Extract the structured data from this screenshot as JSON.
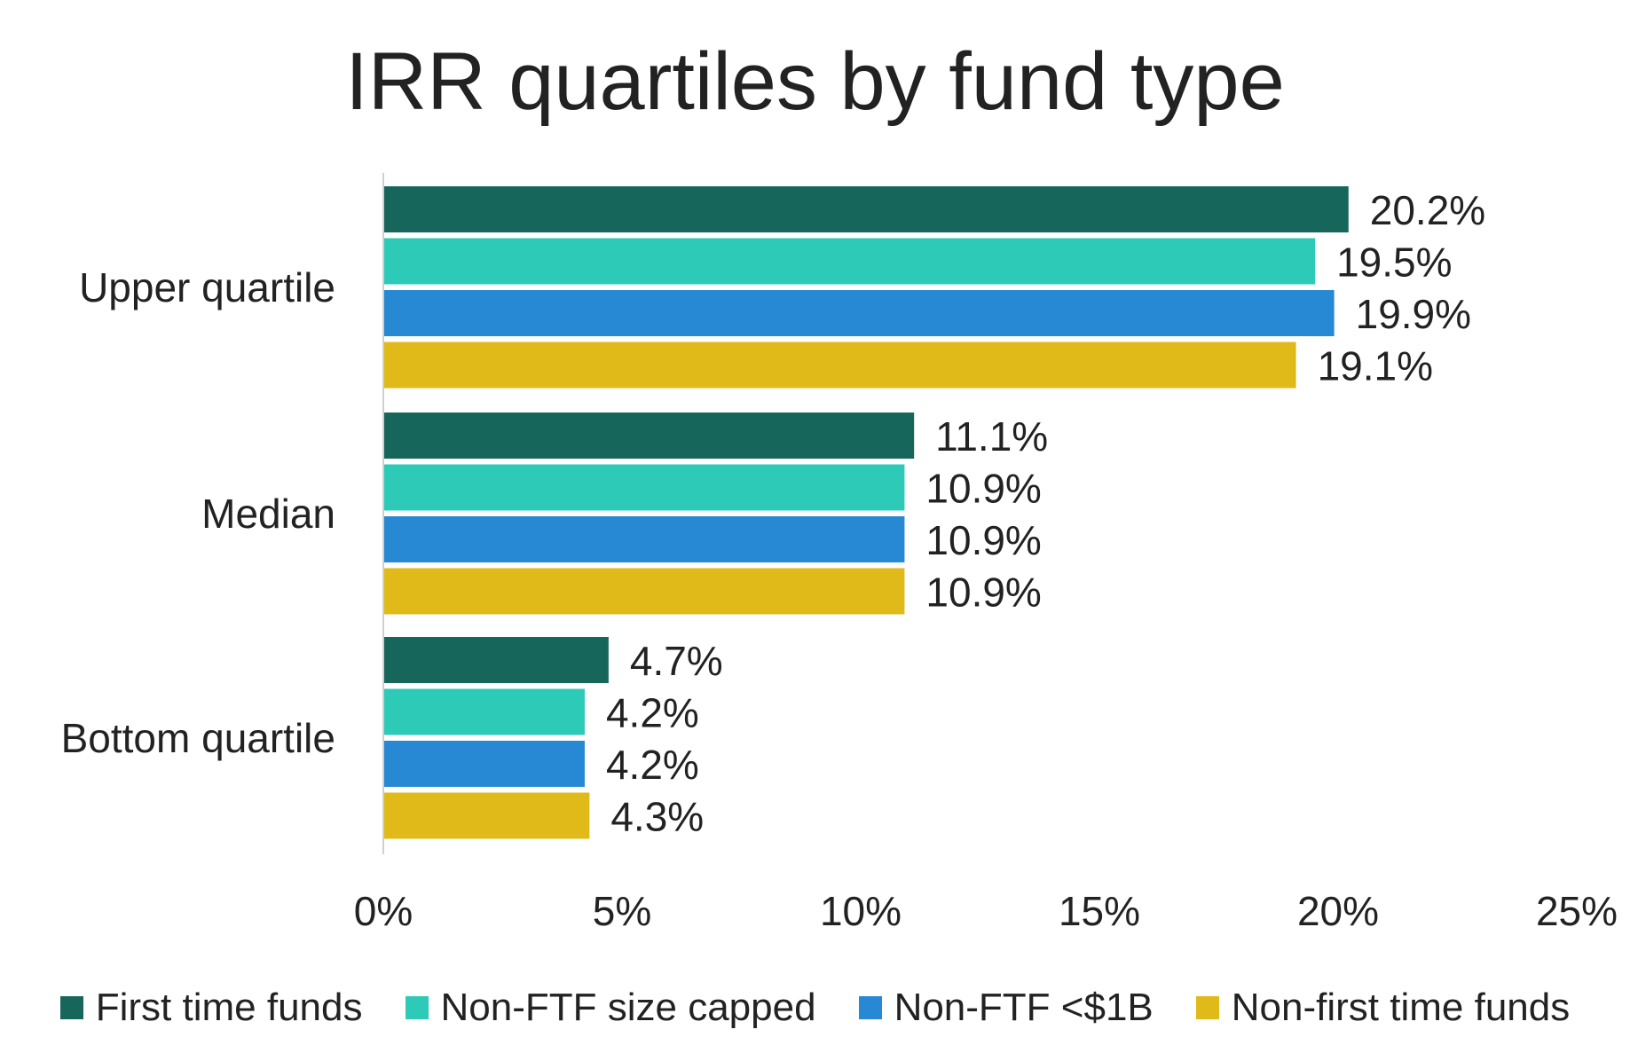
{
  "chart_data": {
    "type": "bar",
    "orientation": "horizontal",
    "title": "IRR quartiles by fund type",
    "categories": [
      "Upper quartile",
      "Median",
      "Bottom quartile"
    ],
    "series": [
      {
        "name": "First time funds",
        "color": "#17665C",
        "values": [
          20.2,
          11.1,
          4.7
        ],
        "labels": [
          "20.2%",
          "11.1%",
          "4.7%"
        ]
      },
      {
        "name": "Non-FTF size capped",
        "color": "#2DCBB7",
        "values": [
          19.5,
          10.9,
          4.2
        ],
        "labels": [
          "19.5%",
          "10.9%",
          "4.2%"
        ]
      },
      {
        "name": "Non-FTF <$1B",
        "color": "#2788D3",
        "values": [
          19.9,
          10.9,
          4.2
        ],
        "labels": [
          "19.9%",
          "10.9%",
          "4.2%"
        ]
      },
      {
        "name": "Non-first time funds",
        "color": "#E0BA18",
        "values": [
          19.1,
          10.9,
          4.3
        ],
        "labels": [
          "19.1%",
          "10.9%",
          "4.3%"
        ]
      }
    ],
    "xlim": [
      0,
      25
    ],
    "xticks": [
      0,
      5,
      10,
      15,
      20,
      25
    ],
    "xtick_labels": [
      "0%",
      "5%",
      "10%",
      "15%",
      "20%",
      "25%"
    ],
    "xlabel": "",
    "ylabel": "",
    "grid": false,
    "legend_position": "bottom"
  }
}
